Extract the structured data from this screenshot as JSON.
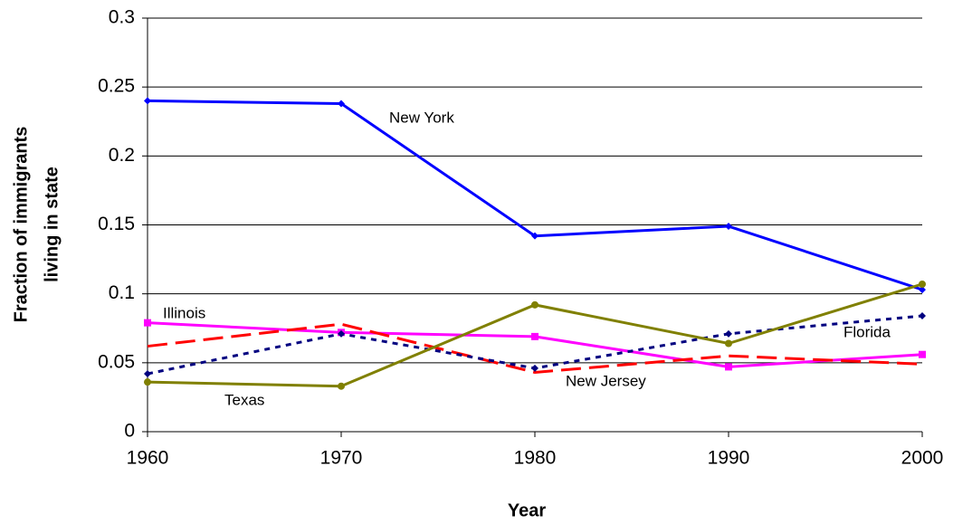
{
  "chart_data": {
    "type": "line",
    "xlabel": "Year",
    "ylabel": [
      "Fraction of immigrants",
      "living in state"
    ],
    "x": [
      1960,
      1970,
      1980,
      1990,
      2000
    ],
    "xlim": [
      1960,
      2000
    ],
    "xticks": [
      1960,
      1970,
      1980,
      1990,
      2000
    ],
    "ylim": [
      0,
      0.3
    ],
    "yticks": [
      0,
      0.05,
      0.1,
      0.15,
      0.2,
      0.25,
      0.3
    ],
    "grid": true,
    "series": [
      {
        "name": "New York",
        "color": "#0000ff",
        "style": "solid",
        "marker": "diamond",
        "values": [
          0.24,
          0.238,
          0.142,
          0.149,
          0.103
        ]
      },
      {
        "name": "Illinois",
        "color": "#ff00ff",
        "style": "solid",
        "marker": "square",
        "values": [
          0.079,
          0.072,
          0.069,
          0.047,
          0.056
        ]
      },
      {
        "name": "New Jersey",
        "color": "#ff0000",
        "style": "dashed",
        "marker": "none",
        "values": [
          0.062,
          0.078,
          0.043,
          0.055,
          0.049
        ]
      },
      {
        "name": "Florida",
        "color": "#000080",
        "style": "dotted",
        "marker": "diamond",
        "values": [
          0.042,
          0.071,
          0.046,
          0.071,
          0.084
        ]
      },
      {
        "name": "Texas",
        "color": "#808000",
        "style": "solid",
        "marker": "circle",
        "values": [
          0.036,
          0.033,
          0.092,
          0.064,
          0.107
        ]
      }
    ]
  }
}
